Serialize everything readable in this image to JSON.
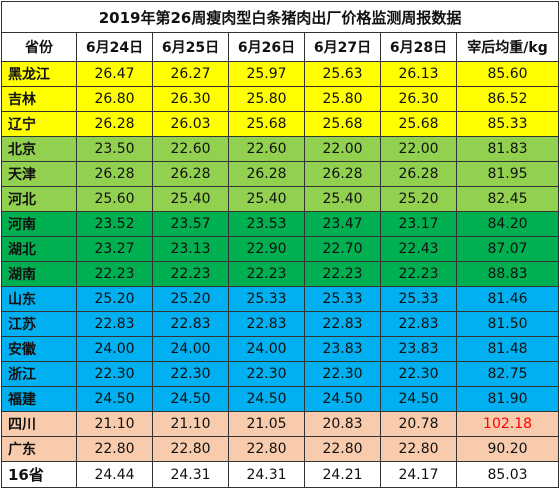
{
  "title": "2019年第26周瘦肉型白条猪肉出厂价格监测周报数据",
  "headers": [
    "省份",
    "6月24日",
    "6月25日",
    "6月26日",
    "6月27日",
    "6月28日",
    "宰后均重/kg"
  ],
  "colors": {
    "yellow": "#ffff00",
    "light_green": "#92d050",
    "green": "#00b050",
    "blue": "#00b0f0",
    "salmon": "#f8cbad",
    "highlight_text": "#ff0000"
  },
  "rows": [
    {
      "province": "黑龙江",
      "values": [
        "26.47",
        "26.27",
        "25.97",
        "25.63",
        "26.13"
      ],
      "weight": "85.60",
      "color": "yellow"
    },
    {
      "province": "吉林",
      "values": [
        "26.80",
        "26.30",
        "25.80",
        "25.80",
        "26.30"
      ],
      "weight": "86.52",
      "color": "yellow"
    },
    {
      "province": "辽宁",
      "values": [
        "26.28",
        "26.03",
        "25.68",
        "25.68",
        "25.68"
      ],
      "weight": "85.33",
      "color": "yellow"
    },
    {
      "province": "北京",
      "values": [
        "23.50",
        "22.60",
        "22.60",
        "22.00",
        "22.00"
      ],
      "weight": "81.83",
      "color": "light_green"
    },
    {
      "province": "天津",
      "values": [
        "26.28",
        "26.28",
        "26.28",
        "26.28",
        "26.28"
      ],
      "weight": "81.95",
      "color": "light_green"
    },
    {
      "province": "河北",
      "values": [
        "25.60",
        "25.40",
        "25.40",
        "25.40",
        "25.20"
      ],
      "weight": "82.45",
      "color": "light_green"
    },
    {
      "province": "河南",
      "values": [
        "23.52",
        "23.57",
        "23.53",
        "23.47",
        "23.17"
      ],
      "weight": "84.20",
      "color": "green"
    },
    {
      "province": "湖北",
      "values": [
        "23.27",
        "23.13",
        "22.90",
        "22.70",
        "22.43"
      ],
      "weight": "87.07",
      "color": "green"
    },
    {
      "province": "湖南",
      "values": [
        "22.23",
        "22.23",
        "22.23",
        "22.23",
        "22.23"
      ],
      "weight": "88.83",
      "color": "green"
    },
    {
      "province": "山东",
      "values": [
        "25.20",
        "25.20",
        "25.33",
        "25.33",
        "25.33"
      ],
      "weight": "81.46",
      "color": "blue"
    },
    {
      "province": "江苏",
      "values": [
        "22.83",
        "22.83",
        "22.83",
        "22.83",
        "22.83"
      ],
      "weight": "81.50",
      "color": "blue"
    },
    {
      "province": "安徽",
      "values": [
        "24.00",
        "24.00",
        "24.00",
        "23.83",
        "23.83"
      ],
      "weight": "81.48",
      "color": "blue"
    },
    {
      "province": "浙江",
      "values": [
        "22.30",
        "22.30",
        "22.30",
        "22.30",
        "22.30"
      ],
      "weight": "82.75",
      "color": "blue"
    },
    {
      "province": "福建",
      "values": [
        "24.50",
        "24.50",
        "24.50",
        "24.50",
        "24.50"
      ],
      "weight": "81.90",
      "color": "blue"
    },
    {
      "province": "四川",
      "values": [
        "21.10",
        "21.10",
        "21.05",
        "20.83",
        "20.78"
      ],
      "weight": "102.18",
      "color": "salmon",
      "weight_highlight": true
    },
    {
      "province": "广东",
      "values": [
        "22.80",
        "22.80",
        "22.80",
        "22.80",
        "22.80"
      ],
      "weight": "90.20",
      "color": "salmon"
    },
    {
      "province": "16省",
      "values": [
        "24.44",
        "24.31",
        "24.31",
        "24.21",
        "24.17"
      ],
      "weight": "85.03",
      "color": "white"
    }
  ]
}
